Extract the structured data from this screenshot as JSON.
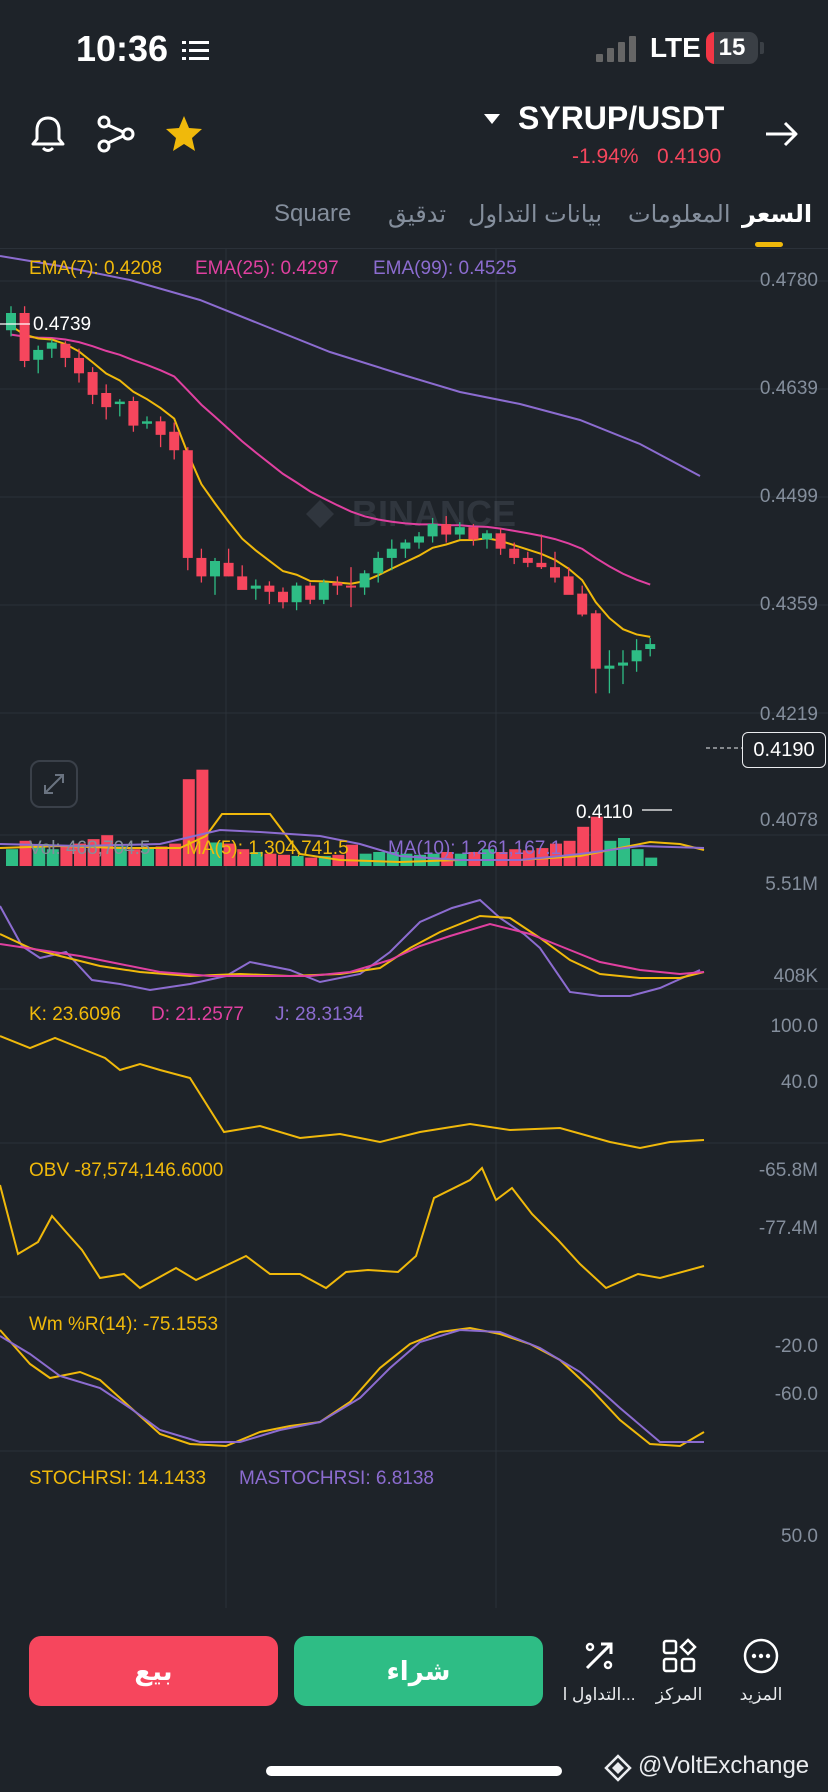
{
  "status": {
    "time": "10:36",
    "network": "LTE",
    "battery": "15",
    "battery_level": 0.15
  },
  "header": {
    "pair": "SYRUP/USDT",
    "change": "-1.94%",
    "price": "0.4190",
    "icons": [
      "bell-icon",
      "share-icon",
      "star-icon",
      "arrow-right-icon"
    ]
  },
  "tabs": [
    "السعر",
    "المعلومات",
    "بيانات التداول",
    "تدقيق",
    "Square"
  ],
  "colors": {
    "up": "#2ebd85",
    "down": "#f6465d",
    "ema7": "#f0b90b",
    "ema25": "#e040a0",
    "ema99": "#8c6cd0",
    "accent": "#f0b90b"
  },
  "main_chart": {
    "ema7": "EMA(7): 0.4208",
    "ema25": "EMA(25): 0.4297",
    "ema99": "EMA(99): 0.4525",
    "watermark": "BINANCE",
    "high_label": "0.4739",
    "low_label": "0.4110",
    "last_price_tag": "0.4190",
    "y_ticks": [
      "0.4780",
      "0.4639",
      "0.4499",
      "0.4359",
      "0.4219",
      "0.4078"
    ]
  },
  "volume": {
    "vol": "Vol: 468,704.5",
    "ma5": "MA(5): 1,304,741.5",
    "ma10": "MA(10): 1,261,167.1",
    "y_ticks": [
      "5.51M",
      "408K"
    ]
  },
  "kdj": {
    "k": "K: 23.6096",
    "d": "D: 21.2577",
    "j": "J: 28.3134",
    "y_ticks": [
      "100.0",
      "40.0"
    ]
  },
  "obv": {
    "label": "OBV -87,574,146.6000",
    "y_ticks": [
      "-65.8M",
      "-77.4M"
    ]
  },
  "wr": {
    "label": "Wm %R(14): -75.1553",
    "y_ticks": [
      "-20.0",
      "-60.0"
    ]
  },
  "stochrsi": {
    "label": "STOCHRSI: 14.1433",
    "ma": "MASTOCHRSI: 6.8138",
    "y_ticks": [
      "50.0"
    ]
  },
  "bottom": {
    "sell": "بيع",
    "buy": "شراء",
    "nav": [
      {
        "icon": "more-icon",
        "label": "المزيد"
      },
      {
        "icon": "grid-icon",
        "label": "المركز"
      },
      {
        "icon": "trade-icon",
        "label": "التداول ا..."
      }
    ]
  },
  "watermark_text": "@VoltExchange"
}
